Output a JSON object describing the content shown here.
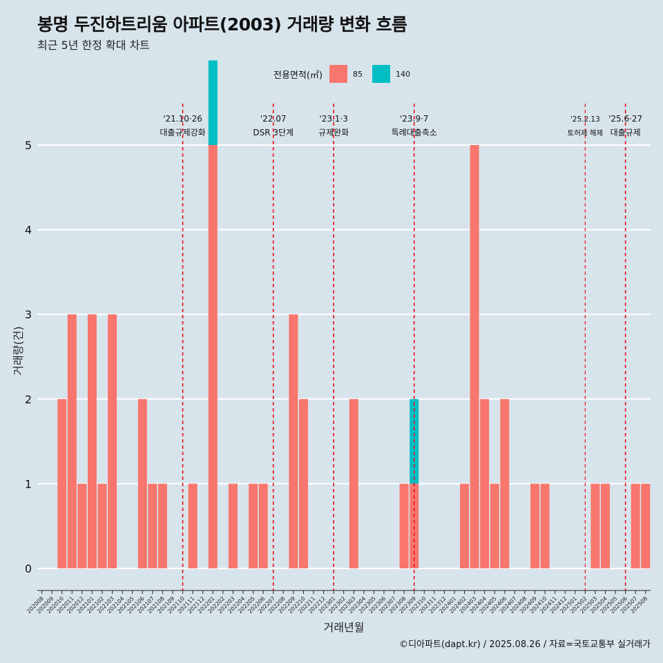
{
  "title": "봉명 두진하트리움 아파트(2003) 거래량 변화 흐름",
  "subtitle": "최근 5년 한정 확대 차트",
  "legend": {
    "title": "전용면적(㎡)",
    "items": [
      {
        "label": "85",
        "color": "#f8766d"
      },
      {
        "label": "140",
        "color": "#00bfc4"
      }
    ]
  },
  "caption": "©디아파트(dapt.kr) / 2025.08.26 / 자료=국토교통부 실거래가",
  "chart_data": {
    "type": "bar",
    "xlabel": "거래년월",
    "ylabel": "거래량(건)",
    "ylim": [
      0,
      5
    ],
    "yticks": [
      0,
      1,
      2,
      3,
      4,
      5
    ],
    "grid": true,
    "legend_position": "top",
    "categories": [
      "202008",
      "202009",
      "202010",
      "202011",
      "202012",
      "202101",
      "202102",
      "202103",
      "202104",
      "202105",
      "202106",
      "202107",
      "202108",
      "202109",
      "202110",
      "202111",
      "202112",
      "202201",
      "202202",
      "202203",
      "202204",
      "202205",
      "202206",
      "202207",
      "202208",
      "202209",
      "202210",
      "202211",
      "202212",
      "202301",
      "202302",
      "202303",
      "202304",
      "202305",
      "202306",
      "202307",
      "202308",
      "202309",
      "202310",
      "202311",
      "202312",
      "202401",
      "202402",
      "202403",
      "202404",
      "202405",
      "202406",
      "202407",
      "202408",
      "202409",
      "202410",
      "202411",
      "202412",
      "202501",
      "202502",
      "202503",
      "202504",
      "202505",
      "202506",
      "202507",
      "202508"
    ],
    "series": [
      {
        "name": "85",
        "color": "#f8766d",
        "values": [
          0,
          0,
          2,
          3,
          1,
          3,
          1,
          3,
          0,
          0,
          2,
          1,
          1,
          0,
          0,
          1,
          0,
          5,
          0,
          1,
          0,
          1,
          1,
          0,
          0,
          3,
          2,
          0,
          0,
          0,
          0,
          2,
          0,
          0,
          0,
          0,
          1,
          1,
          0,
          0,
          0,
          0,
          1,
          5,
          2,
          1,
          2,
          0,
          0,
          1,
          1,
          0,
          0,
          0,
          0,
          1,
          1,
          0,
          0,
          1,
          1
        ]
      },
      {
        "name": "140",
        "color": "#00bfc4",
        "values": [
          0,
          0,
          0,
          0,
          0,
          0,
          0,
          0,
          0,
          0,
          0,
          0,
          0,
          0,
          0,
          0,
          0,
          1,
          0,
          0,
          0,
          0,
          0,
          0,
          0,
          0,
          0,
          0,
          0,
          0,
          0,
          0,
          0,
          0,
          0,
          0,
          0,
          1,
          0,
          0,
          0,
          0,
          0,
          0,
          0,
          0,
          0,
          0,
          0,
          0,
          0,
          0,
          0,
          0,
          0,
          0,
          0,
          0,
          0,
          0,
          0
        ]
      }
    ],
    "annotations": [
      {
        "at": "202110",
        "date": "'21.10·26",
        "text": "대출규제강화"
      },
      {
        "at": "202207",
        "date": "'22.07",
        "text": "DSR 3단계"
      },
      {
        "at": "202301",
        "date": "'23.1·3",
        "text": "규제완화"
      },
      {
        "at": "202309",
        "date": "'23.9·7",
        "text": "특례대출축소"
      },
      {
        "at": "202502",
        "date": "'25.2.13",
        "text": "토허제 해제",
        "small": true
      },
      {
        "at": "202506",
        "date": "'25.6·27",
        "text": "대출규제"
      }
    ]
  }
}
